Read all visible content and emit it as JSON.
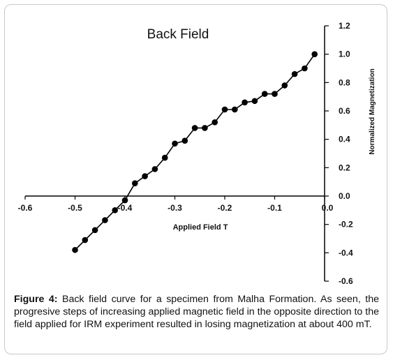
{
  "chart_data": {
    "type": "line",
    "title": "Back Field",
    "xlabel": "Applied Field T",
    "ylabel": "Normalized Magnetization",
    "xlim": [
      -0.6,
      0.0
    ],
    "ylim": [
      -0.6,
      1.2
    ],
    "x_ticks": [
      "-0.6",
      "-0.5",
      "-0.4",
      "-0.3",
      "-0.2",
      "-0.1",
      "0.0"
    ],
    "y_ticks": [
      "-0.6",
      "-0.4",
      "-0.2",
      "0.0",
      "0.2",
      "0.4",
      "0.6",
      "0.8",
      "1.0",
      "1.2"
    ],
    "grid": false,
    "legend": "none",
    "marker": "filled-circle",
    "color": "#000000",
    "x": [
      -0.5,
      -0.48,
      -0.46,
      -0.44,
      -0.42,
      -0.4,
      -0.38,
      -0.36,
      -0.34,
      -0.32,
      -0.3,
      -0.28,
      -0.26,
      -0.24,
      -0.22,
      -0.2,
      -0.18,
      -0.16,
      -0.14,
      -0.12,
      -0.1,
      -0.08,
      -0.06,
      -0.04,
      -0.02
    ],
    "y": [
      -0.38,
      -0.31,
      -0.24,
      -0.17,
      -0.1,
      -0.03,
      0.09,
      0.14,
      0.19,
      0.27,
      0.37,
      0.39,
      0.48,
      0.48,
      0.52,
      0.61,
      0.61,
      0.66,
      0.67,
      0.72,
      0.72,
      0.78,
      0.86,
      0.9,
      1.0
    ]
  },
  "caption": {
    "label": "Figure 4:",
    "text": " Back field curve for a specimen from Malha Formation. As seen, the progresive steps of increasing applied magnetic field in the opposite direction to the field applied for IRM experiment resulted in losing magnetization at about 400 mT."
  }
}
